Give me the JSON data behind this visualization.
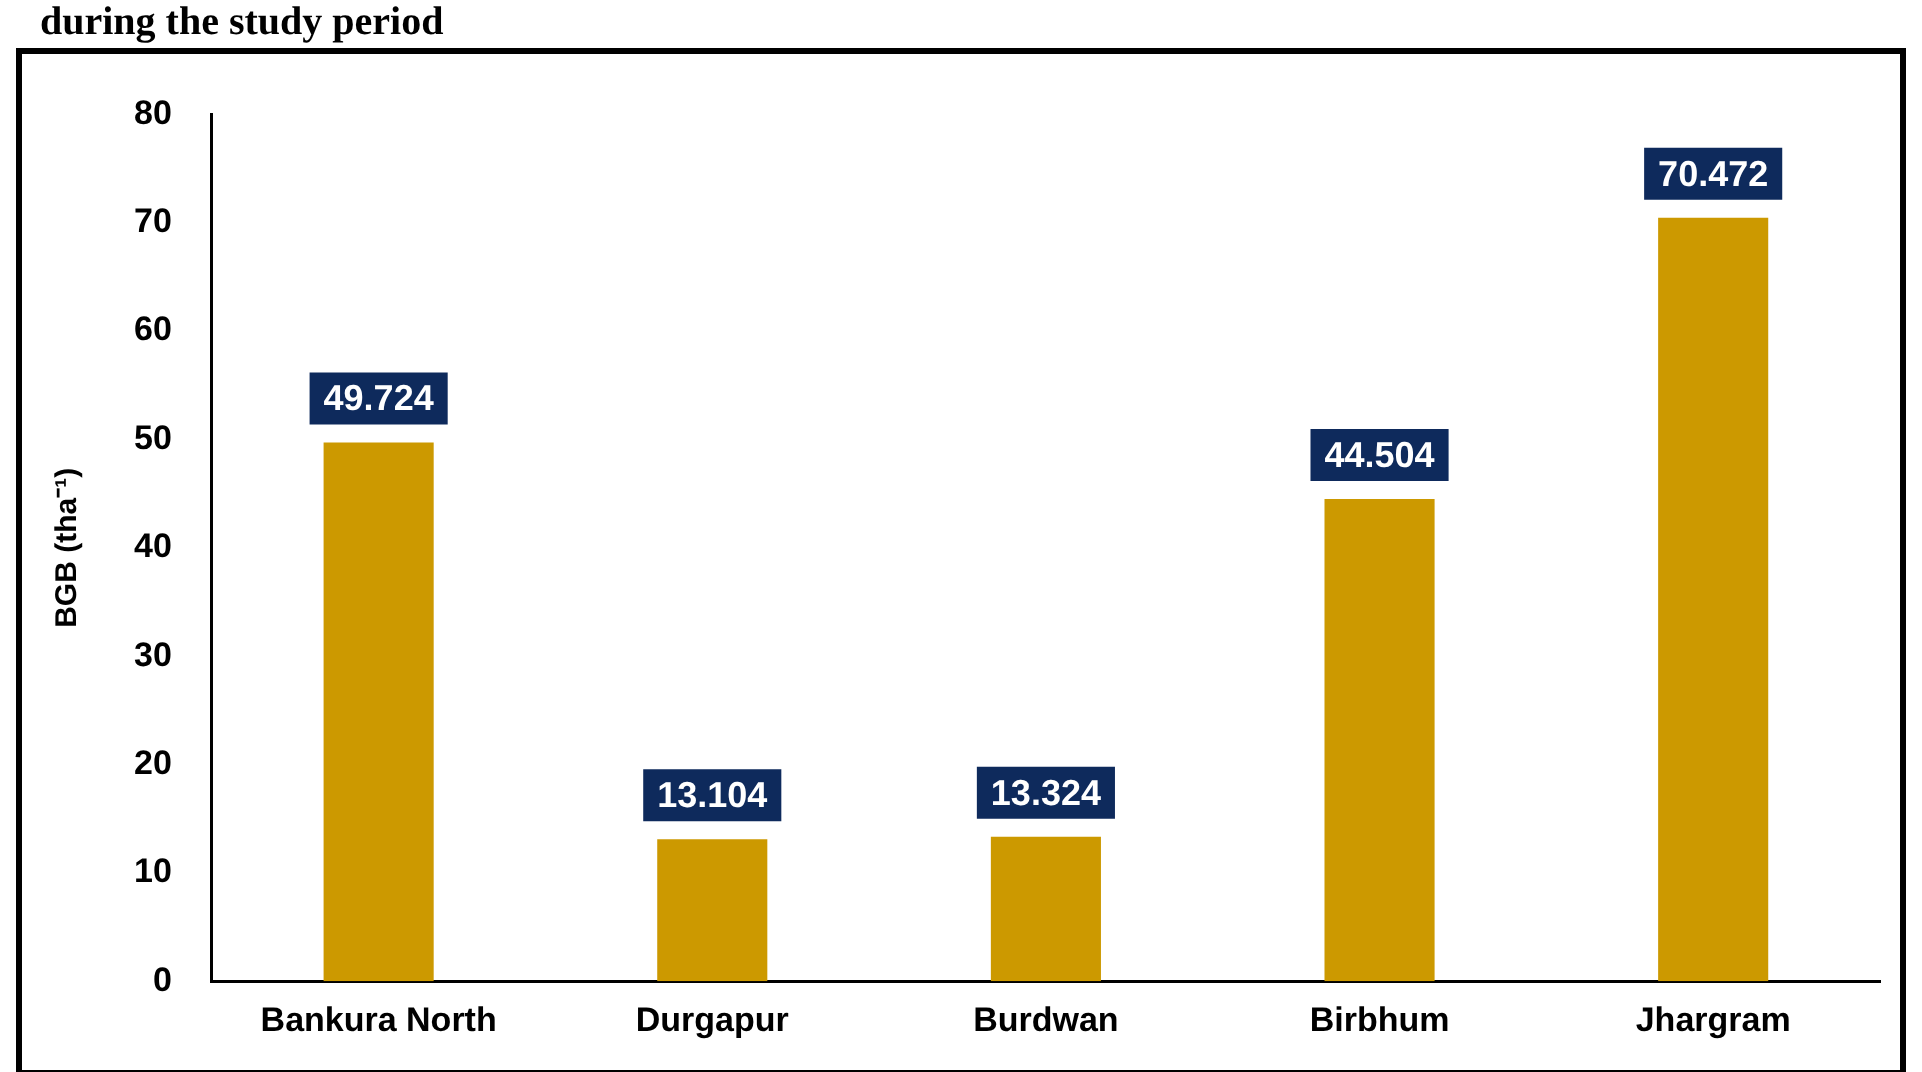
{
  "chart_data": {
    "type": "bar",
    "title": "during the study period",
    "ylabel": "BGB (tha⁻¹)",
    "categories": [
      "Bankura North",
      "Durgapur",
      "Burdwan",
      "Birbhum",
      "Jhargram"
    ],
    "values": [
      49.724,
      13.104,
      13.324,
      44.504,
      70.472
    ],
    "color": "#cc9900",
    "ylim": [
      0,
      80
    ],
    "yticks": [
      0,
      10,
      20,
      30,
      40,
      50,
      60,
      70,
      80
    ],
    "grid": false,
    "legend": false,
    "data_labels": true
  }
}
